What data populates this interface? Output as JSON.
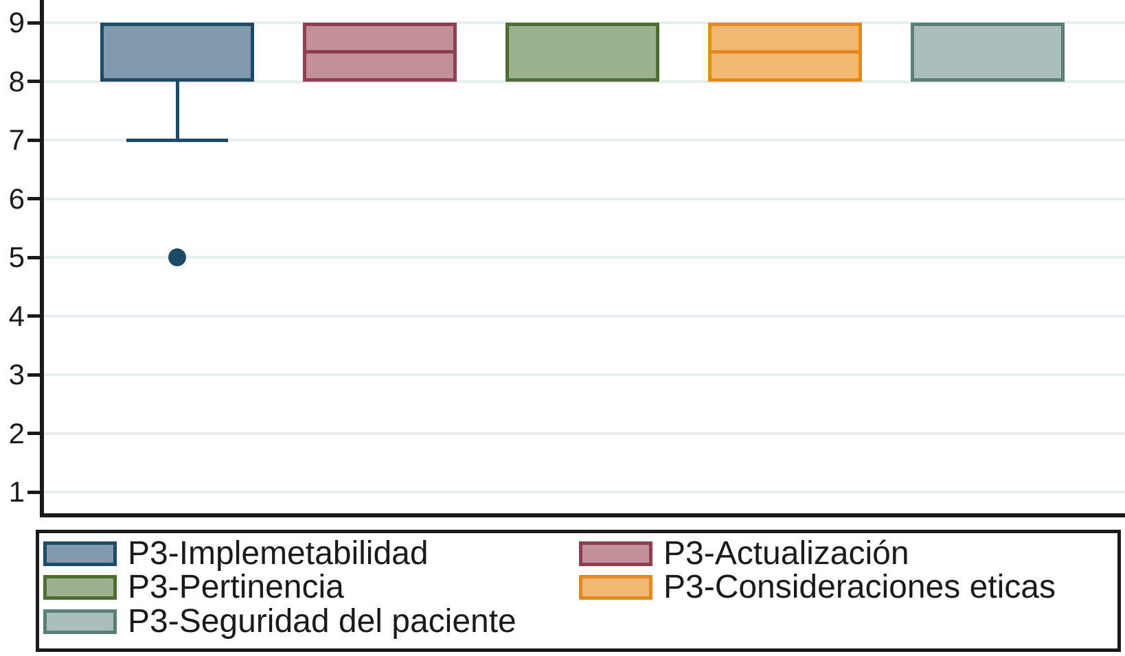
{
  "chart_data": {
    "type": "boxplot",
    "orientation": "vertical",
    "title": "",
    "xlabel": "",
    "ylabel": "",
    "y_ticks": [
      9,
      8,
      7,
      6,
      5,
      4,
      3,
      2,
      1
    ],
    "ylim_shown": [
      0.6,
      9.4
    ],
    "grid": "horizontal-light",
    "legend_position": "bottom-two-columns",
    "series": [
      {
        "name": "P3-Implemetabilidad",
        "q1": 8,
        "median": null,
        "q3": 9,
        "whisker_low": 7,
        "whisker_high": null,
        "outliers": [
          5
        ],
        "fill": "#8399ad",
        "border": "#1d4a66"
      },
      {
        "name": "P3-Actualización",
        "q1": 8,
        "median": 8.5,
        "q3": 9,
        "whisker_low": null,
        "whisker_high": null,
        "outliers": [],
        "fill": "#c1909a",
        "border": "#8f3f4e"
      },
      {
        "name": "P3-Pertinencia",
        "q1": 8,
        "median": null,
        "q3": 9,
        "whisker_low": null,
        "whisker_high": null,
        "outliers": [],
        "fill": "#9eb292",
        "border": "#4e6d33"
      },
      {
        "name": "P3-Consideraciones eticas",
        "q1": 8,
        "median": 8.5,
        "q3": 9,
        "whisker_low": null,
        "whisker_high": null,
        "outliers": [],
        "fill": "#f0b775",
        "border": "#e2891f"
      },
      {
        "name": "P3-Seguridad del paciente",
        "q1": 8,
        "median": null,
        "q3": 9,
        "whisker_low": null,
        "whisker_high": null,
        "outliers": [],
        "fill": "#aabfbb",
        "border": "#5b7e78"
      }
    ],
    "legend_columns": [
      [
        0,
        2,
        4
      ],
      [
        1,
        3
      ]
    ]
  },
  "colors": {
    "background": "#ffffff",
    "grid": "#e8eef0",
    "axis": "#1a1a1a",
    "text": "#1a1a1a"
  }
}
